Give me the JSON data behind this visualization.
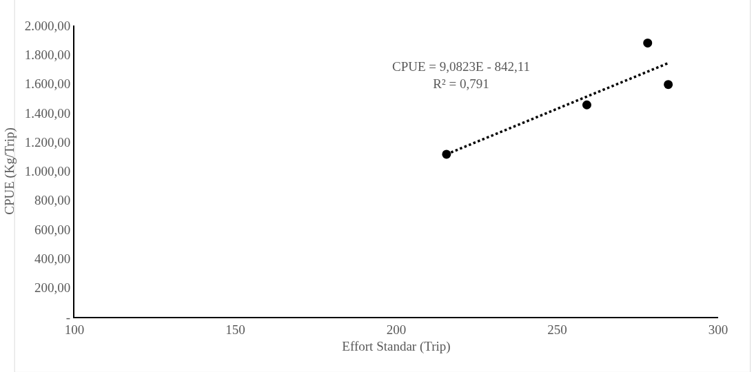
{
  "chart_data": {
    "type": "scatter",
    "xlabel": "Effort Standar (Trip)",
    "ylabel": "CPUE (Kg/Trip)",
    "x": [
      215.6,
      259.2,
      278.1,
      284.5
    ],
    "series": [
      {
        "color": "#000000",
        "marker": "circle",
        "values": [
          1116,
          1455,
          1880,
          1595
        ]
      },
      {
        "type": "line",
        "color": "#000000",
        "line_style": "dotted",
        "marker": "none",
        "x": [
          215.6,
          284.5
        ],
        "values": [
          1116,
          1742
        ]
      }
    ],
    "annotations": [
      "CPUE = 9,0823E - 842,11\nR² = 0,791"
    ],
    "xlim": [
      100,
      300
    ],
    "xticks": [
      100,
      150,
      200,
      250,
      300
    ],
    "ylim": [
      0,
      2000
    ],
    "yticks": [
      {
        "value": 0,
        "label": "-"
      },
      {
        "value": 200,
        "label": "200,00"
      },
      {
        "value": 400,
        "label": "400,00"
      },
      {
        "value": 600,
        "label": "600,00"
      },
      {
        "value": 800,
        "label": "800,00"
      },
      {
        "value": 1000,
        "label": "1.000,00"
      },
      {
        "value": 1200,
        "label": "1.200,00"
      },
      {
        "value": 1400,
        "label": "1.400,00"
      },
      {
        "value": 1600,
        "label": "1.600,00"
      },
      {
        "value": 1800,
        "label": "1.800,00"
      },
      {
        "value": 2000,
        "label": "2.000,00"
      }
    ],
    "grid": false
  }
}
